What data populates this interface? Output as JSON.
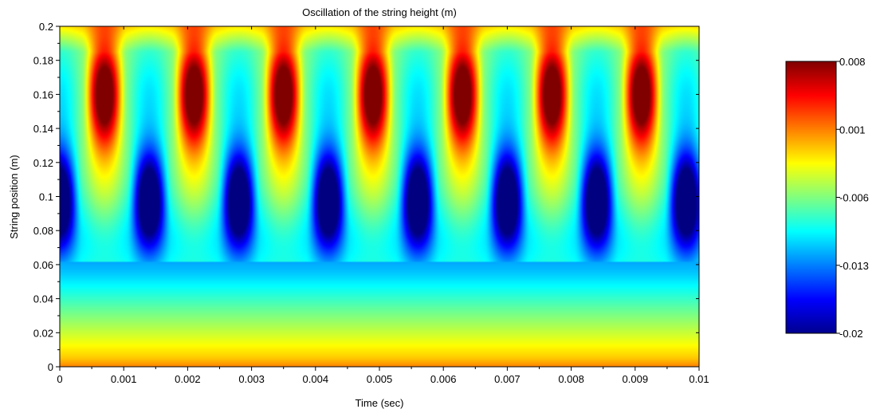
{
  "chart_data": {
    "type": "heatmap",
    "title": "Oscillation of the string height (m)",
    "xlabel": "Time (sec)",
    "ylabel": "String position (m)",
    "xlim": [
      0,
      0.01
    ],
    "ylim": [
      0,
      0.2
    ],
    "xticks": [
      "0",
      "0.001",
      "0.002",
      "0.003",
      "0.004",
      "0.005",
      "0.006",
      "0.007",
      "0.008",
      "0.009",
      "0.01"
    ],
    "yticks": [
      "0",
      "0.02",
      "0.04",
      "0.06",
      "0.08",
      "0.1",
      "0.12",
      "0.14",
      "0.16",
      "0.18",
      "0.2"
    ],
    "colorbar": {
      "range": [
        -0.02,
        0.008
      ],
      "ticks": [
        "0.008",
        "0.001",
        "-0.006",
        "-0.013",
        "-0.02"
      ],
      "colormap": "jet"
    },
    "z_description_grid": {
      "x": [
        0,
        0.0007,
        0.0014,
        0.0021,
        0.0028,
        0.0035,
        0.0042,
        0.0049,
        0.0056,
        0.0063,
        0.007,
        0.0077,
        0.0084,
        0.0091,
        0.0098
      ],
      "upper_band_center_m": 0.16,
      "lower_band_center_m": 0.1,
      "peak_values": [
        0.007,
        -0.019,
        0.007,
        -0.019,
        0.007,
        -0.019,
        0.007,
        -0.019,
        0.007,
        -0.019,
        0.007,
        -0.019,
        0.007,
        -0.019,
        0.007
      ],
      "lower_region_profile": {
        "y": [
          0,
          0.005,
          0.02,
          0.04,
          0.055,
          0.062
        ],
        "value": [
          0.001,
          -0.001,
          -0.004,
          -0.008,
          -0.011,
          -0.012
        ]
      }
    }
  }
}
